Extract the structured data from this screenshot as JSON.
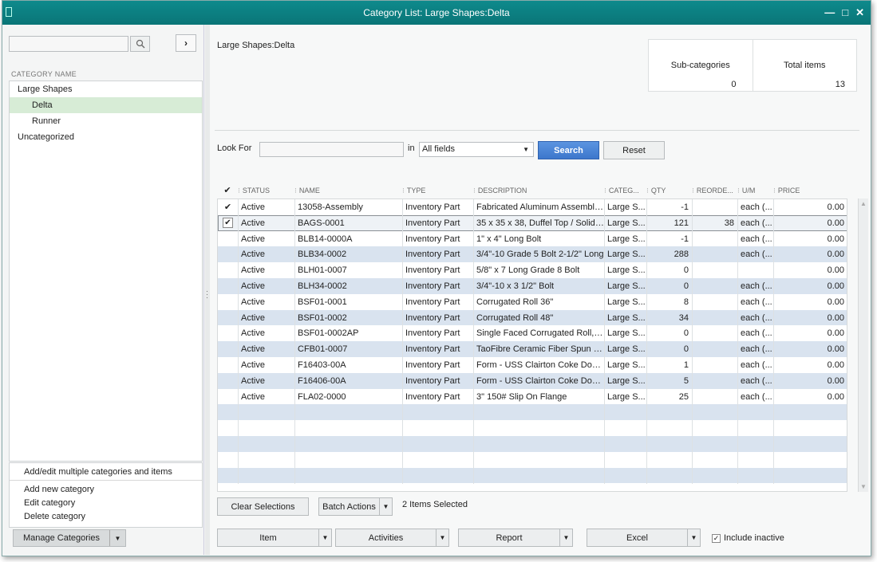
{
  "window": {
    "title": "Category List: Large Shapes:Delta"
  },
  "left": {
    "search_placeholder": "",
    "column_header": "CATEGORY NAME",
    "tree": [
      {
        "label": "Large Shapes",
        "level": 0,
        "selected": false
      },
      {
        "label": "Delta",
        "level": 1,
        "selected": true
      },
      {
        "label": "Runner",
        "level": 1,
        "selected": false
      },
      {
        "label": "Uncategorized",
        "level": 0,
        "selected": false
      }
    ],
    "menu": {
      "add_edit_multiple": "Add/edit multiple categories and items",
      "add_new": "Add new category",
      "edit": "Edit category",
      "delete": "Delete category"
    },
    "manage_label": "Manage Categories"
  },
  "right": {
    "path": "Large Shapes:Delta",
    "stats": {
      "sub_label": "Sub-categories",
      "sub_value": "0",
      "total_label": "Total items",
      "total_value": "13"
    },
    "lookfor_label": "Look For",
    "lookfor_value": "",
    "in_label": "in",
    "fields_value": "All fields",
    "search_label": "Search",
    "reset_label": "Reset"
  },
  "grid": {
    "columns": [
      "✔",
      "STATUS",
      "NAME",
      "TYPE",
      "DESCRIPTION",
      "CATEG...",
      "QTY",
      "REORDE...",
      "U/M",
      "PRICE"
    ],
    "rows": [
      {
        "check": "✔",
        "status": "Active",
        "name": "13058-Assembly",
        "type": "Inventory Part",
        "desc": "Fabricated Aluminum Assembly ...",
        "cat": "Large S...",
        "qty": "-1",
        "reorder": "",
        "um": "each (...",
        "price": "0.00"
      },
      {
        "check": "✔",
        "status": "Active",
        "name": "BAGS-0001",
        "type": "Inventory Part",
        "desc": "35 x 35 x 38, Duffel Top / Solid B...",
        "cat": "Large S...",
        "qty": "121",
        "reorder": "38",
        "um": "each (...",
        "price": "0.00"
      },
      {
        "check": "",
        "status": "Active",
        "name": "BLB14-0000A",
        "type": "Inventory Part",
        "desc": "1\" x 4\"  Long Bolt",
        "cat": "Large S...",
        "qty": "-1",
        "reorder": "",
        "um": "each (...",
        "price": "0.00"
      },
      {
        "check": "",
        "status": "Active",
        "name": "BLB34-0002",
        "type": "Inventory Part",
        "desc": "3/4\"-10 Grade 5 Bolt 2-1/2\" Long",
        "cat": "Large S...",
        "qty": "288",
        "reorder": "",
        "um": "each (...",
        "price": "0.00"
      },
      {
        "check": "",
        "status": "Active",
        "name": "BLH01-0007",
        "type": "Inventory Part",
        "desc": "5/8\" x 7 Long Grade 8 Bolt",
        "cat": "Large S...",
        "qty": "0",
        "reorder": "",
        "um": "",
        "price": "0.00"
      },
      {
        "check": "",
        "status": "Active",
        "name": "BLH34-0002",
        "type": "Inventory Part",
        "desc": "3/4\"-10 x 3 1/2\" Bolt",
        "cat": "Large S...",
        "qty": "0",
        "reorder": "",
        "um": "each (...",
        "price": "0.00"
      },
      {
        "check": "",
        "status": "Active",
        "name": "BSF01-0001",
        "type": "Inventory Part",
        "desc": "Corrugated Roll 36\"",
        "cat": "Large S...",
        "qty": "8",
        "reorder": "",
        "um": "each (...",
        "price": "0.00"
      },
      {
        "check": "",
        "status": "Active",
        "name": "BSF01-0002",
        "type": "Inventory Part",
        "desc": "Corrugated Roll 48\"",
        "cat": "Large S...",
        "qty": "34",
        "reorder": "",
        "um": "each (...",
        "price": "0.00"
      },
      {
        "check": "",
        "status": "Active",
        "name": "BSF01-0002AP",
        "type": "Inventory Part",
        "desc": "Single Faced Corrugated Roll, A...",
        "cat": "Large S...",
        "qty": "0",
        "reorder": "",
        "um": "each (...",
        "price": "0.00"
      },
      {
        "check": "",
        "status": "Active",
        "name": "CFB01-0007",
        "type": "Inventory Part",
        "desc": "TaoFibre Ceramic Fiber Spun Bl...",
        "cat": "Large S...",
        "qty": "0",
        "reorder": "",
        "um": "each (...",
        "price": "0.00"
      },
      {
        "check": "",
        "status": "Active",
        "name": "F16403-00A",
        "type": "Inventory Part",
        "desc": "Form - USS Clairton Coke Door ...",
        "cat": "Large S...",
        "qty": "1",
        "reorder": "",
        "um": "each (...",
        "price": "0.00"
      },
      {
        "check": "",
        "status": "Active",
        "name": "F16406-00A",
        "type": "Inventory Part",
        "desc": "Form - USS Clairton Coke Door ...",
        "cat": "Large S...",
        "qty": "5",
        "reorder": "",
        "um": "each (...",
        "price": "0.00"
      },
      {
        "check": "",
        "status": "Active",
        "name": "FLA02-0000",
        "type": "Inventory Part",
        "desc": "3\" 150# Slip On Flange",
        "cat": "Large S...",
        "qty": "25",
        "reorder": "",
        "um": "each (...",
        "price": "0.00"
      }
    ]
  },
  "footer": {
    "clear_label": "Clear Selections",
    "batch_label": "Batch Actions",
    "selected_text": "2 Items Selected",
    "item_label": "Item",
    "activities_label": "Activities",
    "report_label": "Report",
    "excel_label": "Excel",
    "include_inactive_label": "Include inactive"
  },
  "colors": {
    "titlebar": "#0a7577",
    "selected_tree": "#d7ecd6",
    "row_alt": "#d9e3ef",
    "search_button": "#3d77cc"
  }
}
